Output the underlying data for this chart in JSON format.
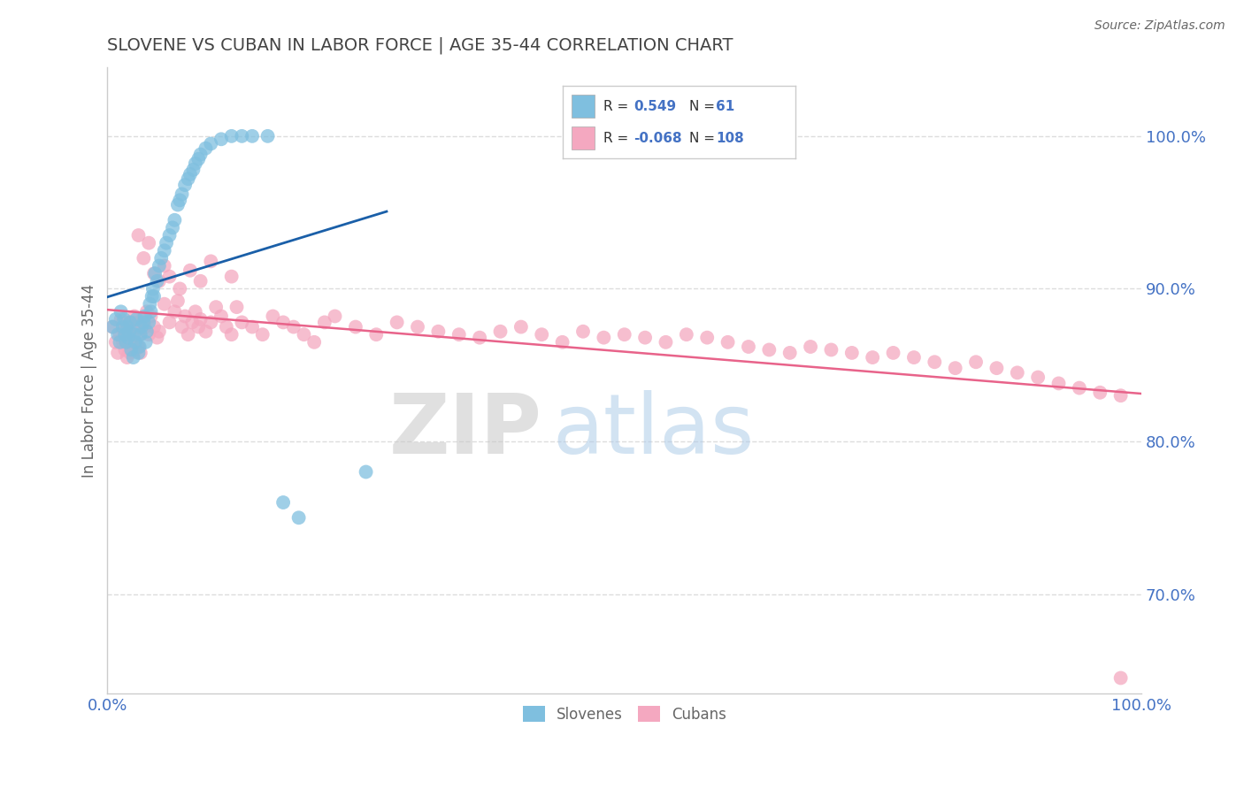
{
  "title": "SLOVENE VS CUBAN IN LABOR FORCE | AGE 35-44 CORRELATION CHART",
  "source_text": "Source: ZipAtlas.com",
  "ylabel": "In Labor Force | Age 35-44",
  "ytick_labels": [
    "70.0%",
    "80.0%",
    "90.0%",
    "100.0%"
  ],
  "ytick_values": [
    0.7,
    0.8,
    0.9,
    1.0
  ],
  "xlim": [
    0.0,
    1.0
  ],
  "ylim": [
    0.635,
    1.045
  ],
  "legend_slovene_R": "0.549",
  "legend_slovene_N": "61",
  "legend_cuban_R": "-0.068",
  "legend_cuban_N": "108",
  "slovene_color": "#7fbfdf",
  "cuban_color": "#f4a8c0",
  "slovene_line_color": "#1a5fa8",
  "cuban_line_color": "#e8638a",
  "bg_color": "#ffffff",
  "title_color": "#444444",
  "axis_color": "#cccccc",
  "tick_color": "#4472c4",
  "label_color": "#666666",
  "grid_color": "#dddddd",
  "slovene_x": [
    0.005,
    0.008,
    0.01,
    0.012,
    0.013,
    0.015,
    0.016,
    0.017,
    0.018,
    0.019,
    0.02,
    0.021,
    0.022,
    0.023,
    0.025,
    0.026,
    0.027,
    0.028,
    0.03,
    0.031,
    0.032,
    0.033,
    0.035,
    0.036,
    0.037,
    0.038,
    0.04,
    0.041,
    0.042,
    0.043,
    0.044,
    0.045,
    0.046,
    0.048,
    0.05,
    0.052,
    0.055,
    0.057,
    0.06,
    0.063,
    0.065,
    0.068,
    0.07,
    0.072,
    0.075,
    0.078,
    0.08,
    0.083,
    0.085,
    0.088,
    0.09,
    0.095,
    0.1,
    0.11,
    0.12,
    0.13,
    0.14,
    0.155,
    0.17,
    0.185,
    0.25
  ],
  "slovene_y": [
    0.875,
    0.88,
    0.87,
    0.865,
    0.885,
    0.875,
    0.88,
    0.87,
    0.865,
    0.875,
    0.868,
    0.872,
    0.878,
    0.86,
    0.855,
    0.87,
    0.865,
    0.88,
    0.858,
    0.862,
    0.87,
    0.875,
    0.878,
    0.882,
    0.865,
    0.872,
    0.878,
    0.89,
    0.885,
    0.895,
    0.9,
    0.895,
    0.91,
    0.905,
    0.915,
    0.92,
    0.925,
    0.93,
    0.935,
    0.94,
    0.945,
    0.955,
    0.958,
    0.962,
    0.968,
    0.972,
    0.975,
    0.978,
    0.982,
    0.985,
    0.988,
    0.992,
    0.995,
    0.998,
    1.0,
    1.0,
    1.0,
    1.0,
    0.76,
    0.75,
    0.78
  ],
  "cuban_x": [
    0.005,
    0.008,
    0.01,
    0.012,
    0.013,
    0.015,
    0.016,
    0.017,
    0.018,
    0.019,
    0.02,
    0.021,
    0.022,
    0.023,
    0.025,
    0.026,
    0.027,
    0.028,
    0.03,
    0.031,
    0.032,
    0.034,
    0.036,
    0.038,
    0.04,
    0.042,
    0.045,
    0.048,
    0.05,
    0.055,
    0.06,
    0.065,
    0.068,
    0.072,
    0.075,
    0.078,
    0.082,
    0.085,
    0.088,
    0.09,
    0.095,
    0.1,
    0.105,
    0.11,
    0.115,
    0.12,
    0.125,
    0.13,
    0.14,
    0.15,
    0.16,
    0.17,
    0.18,
    0.19,
    0.2,
    0.21,
    0.22,
    0.24,
    0.26,
    0.28,
    0.3,
    0.32,
    0.34,
    0.36,
    0.38,
    0.4,
    0.42,
    0.44,
    0.46,
    0.48,
    0.5,
    0.52,
    0.54,
    0.56,
    0.58,
    0.6,
    0.62,
    0.64,
    0.66,
    0.68,
    0.7,
    0.72,
    0.74,
    0.76,
    0.78,
    0.8,
    0.82,
    0.84,
    0.86,
    0.88,
    0.9,
    0.92,
    0.94,
    0.96,
    0.98,
    0.03,
    0.035,
    0.04,
    0.045,
    0.05,
    0.055,
    0.06,
    0.07,
    0.08,
    0.09,
    0.1,
    0.12,
    0.98
  ],
  "cuban_y": [
    0.875,
    0.865,
    0.858,
    0.87,
    0.88,
    0.865,
    0.872,
    0.86,
    0.878,
    0.855,
    0.862,
    0.87,
    0.858,
    0.865,
    0.878,
    0.882,
    0.86,
    0.875,
    0.862,
    0.87,
    0.858,
    0.88,
    0.875,
    0.885,
    0.87,
    0.882,
    0.875,
    0.868,
    0.872,
    0.89,
    0.878,
    0.885,
    0.892,
    0.875,
    0.882,
    0.87,
    0.878,
    0.885,
    0.875,
    0.88,
    0.872,
    0.878,
    0.888,
    0.882,
    0.875,
    0.87,
    0.888,
    0.878,
    0.875,
    0.87,
    0.882,
    0.878,
    0.875,
    0.87,
    0.865,
    0.878,
    0.882,
    0.875,
    0.87,
    0.878,
    0.875,
    0.872,
    0.87,
    0.868,
    0.872,
    0.875,
    0.87,
    0.865,
    0.872,
    0.868,
    0.87,
    0.868,
    0.865,
    0.87,
    0.868,
    0.865,
    0.862,
    0.86,
    0.858,
    0.862,
    0.86,
    0.858,
    0.855,
    0.858,
    0.855,
    0.852,
    0.848,
    0.852,
    0.848,
    0.845,
    0.842,
    0.838,
    0.835,
    0.832,
    0.83,
    0.935,
    0.92,
    0.93,
    0.91,
    0.905,
    0.915,
    0.908,
    0.9,
    0.912,
    0.905,
    0.918,
    0.908,
    0.645
  ]
}
